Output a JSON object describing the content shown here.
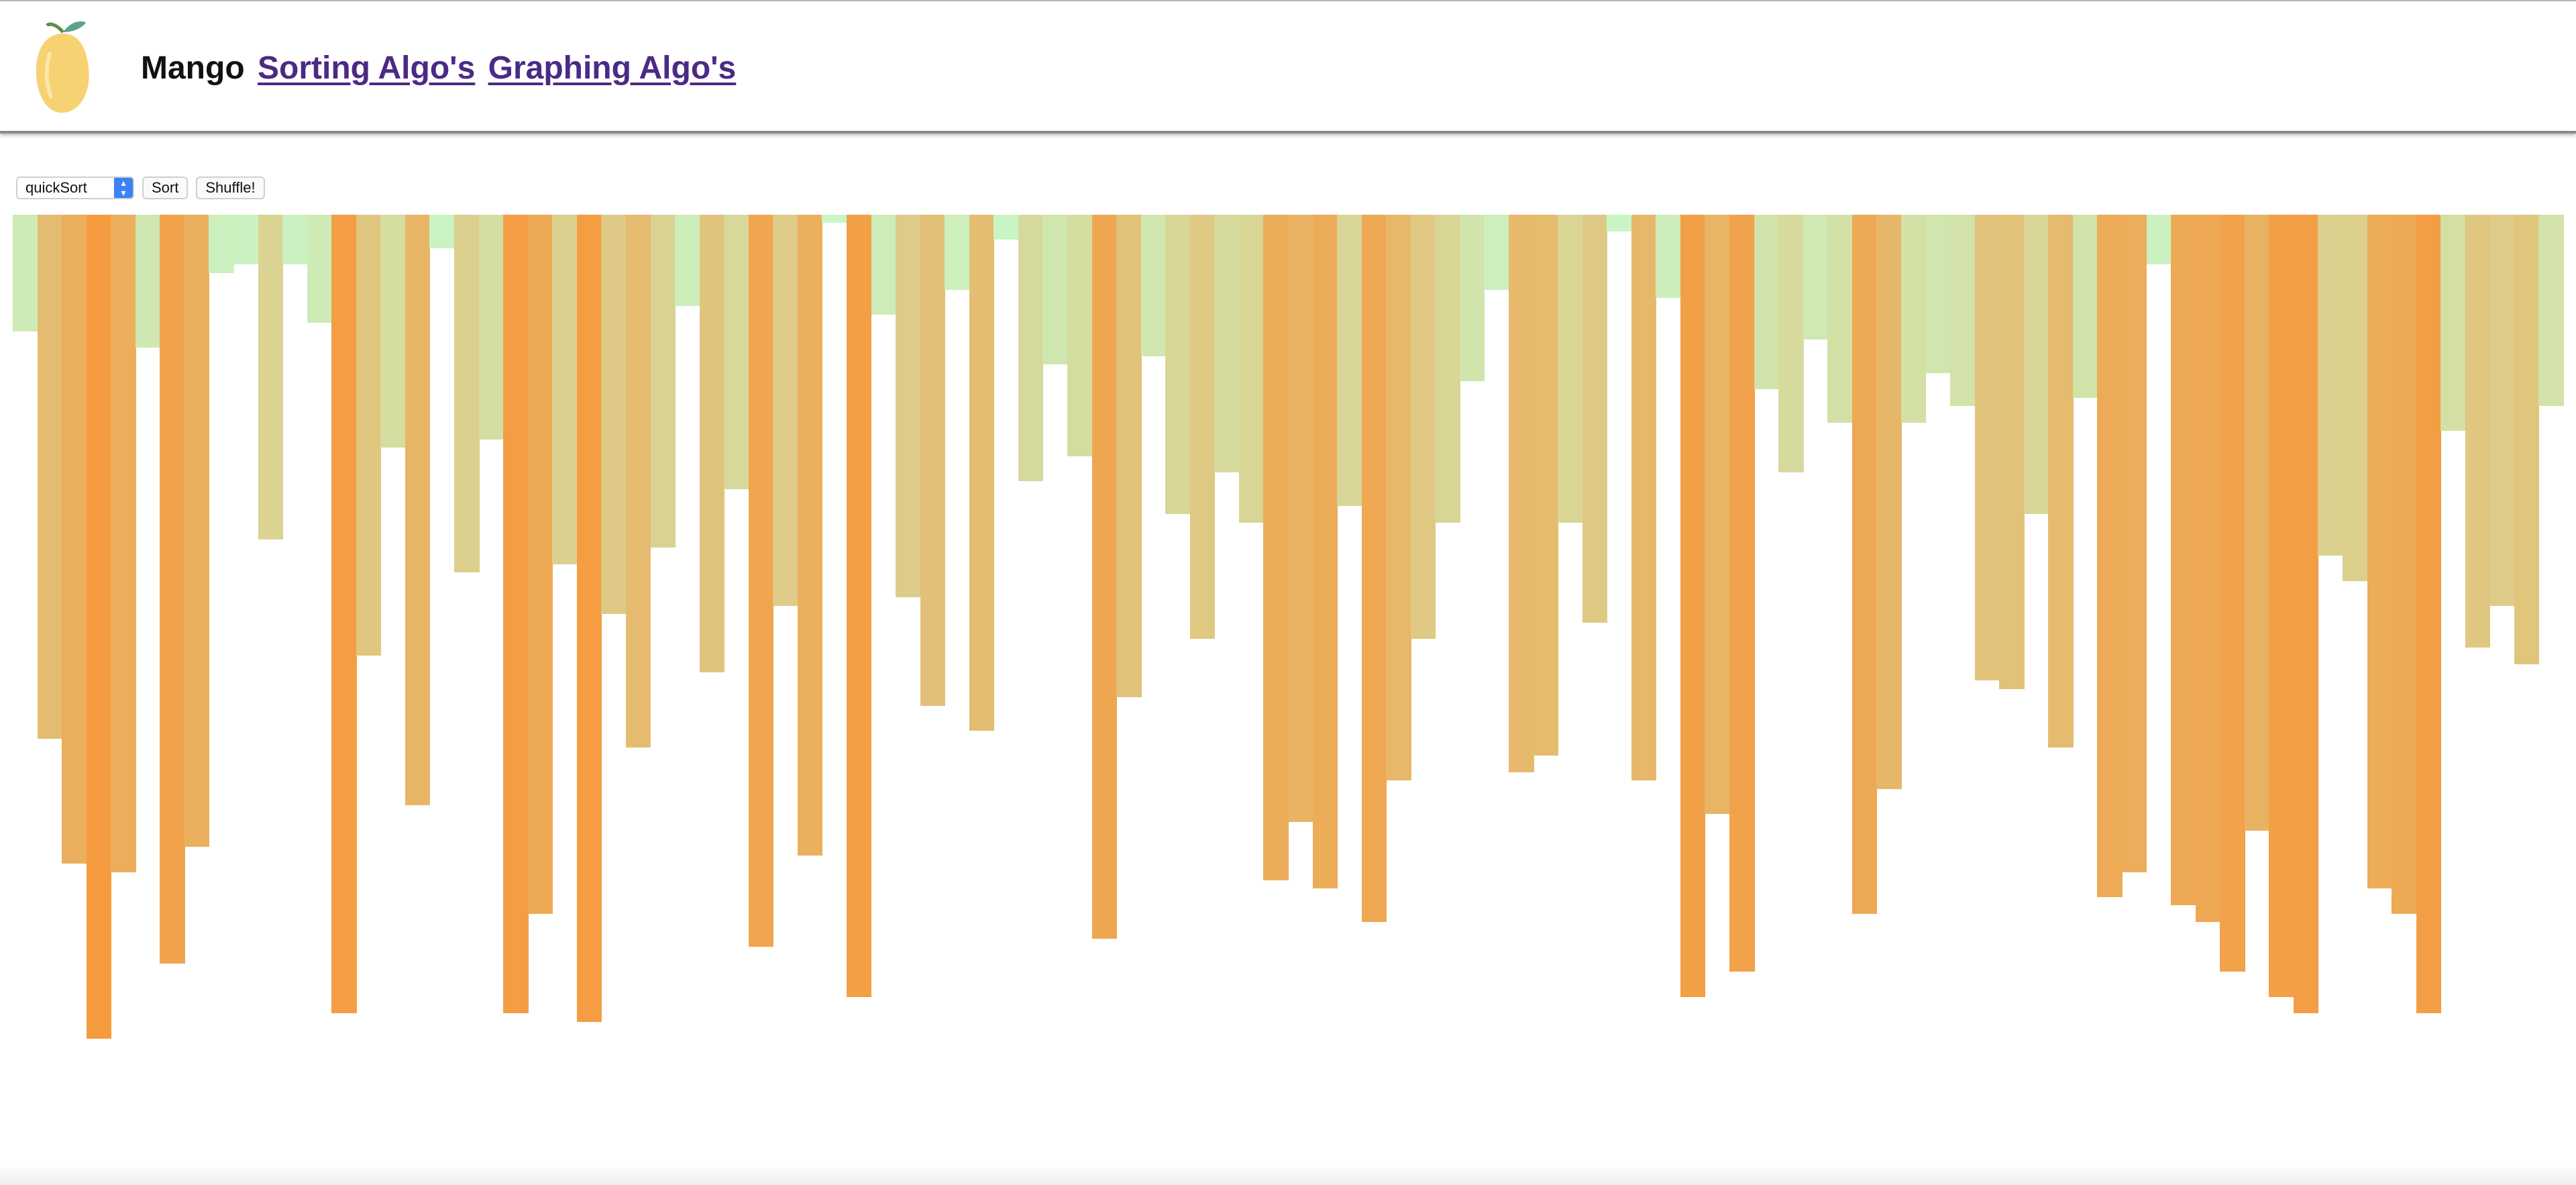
{
  "header": {
    "logo_icon": "mango-icon",
    "brand": "Mango",
    "nav_links": [
      "Sorting Algo's",
      "Graphing Algo's"
    ]
  },
  "controls": {
    "algorithm_selected": "quickSort",
    "sort_label": "Sort",
    "shuffle_label": "Shuffle!"
  },
  "colors": {
    "low": "#c8f7c8",
    "high": "#f59a3e",
    "link": "#4b2a86"
  },
  "chart_data": {
    "type": "bar",
    "orientation": "hanging",
    "max_value": 100,
    "values": [
      14,
      63,
      78,
      99,
      79,
      16,
      90,
      76,
      7,
      6,
      39,
      6,
      13,
      96,
      53,
      28,
      71,
      4,
      43,
      27,
      96,
      84,
      42,
      97,
      48,
      64,
      40,
      11,
      55,
      33,
      88,
      47,
      77,
      1,
      94,
      12,
      46,
      59,
      9,
      62,
      3,
      32,
      18,
      29,
      87,
      58,
      17,
      36,
      51,
      31,
      37,
      80,
      73,
      81,
      35,
      85,
      68,
      51,
      37,
      20,
      9,
      67,
      65,
      37,
      49,
      2,
      68,
      10,
      94,
      72,
      91,
      21,
      31,
      15,
      25,
      84,
      69,
      25,
      19,
      23,
      56,
      57,
      36,
      64,
      22,
      82,
      79,
      6,
      83,
      85,
      91,
      74,
      94,
      96,
      41,
      44,
      81,
      84,
      96,
      26,
      52,
      47,
      54,
      23
    ]
  }
}
